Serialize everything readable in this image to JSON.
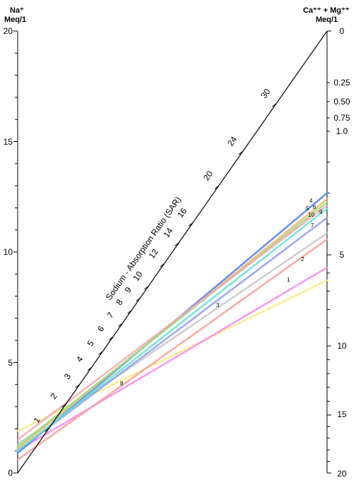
{
  "chart_data": {
    "type": "line",
    "left_axis": {
      "label_line1": "Na⁺",
      "label_line2": "Meq/1",
      "range": [
        0,
        20
      ],
      "ticks": [
        "0",
        "5",
        "10",
        "15",
        "20"
      ]
    },
    "right_axis": {
      "label_line1": "Ca⁺⁺ + Mg⁺⁺",
      "label_line2": "Meq/1",
      "ticks": [
        "0",
        "0.25",
        "0.50",
        "0.75",
        "1.0",
        "5",
        "10",
        "15",
        "20"
      ],
      "tick_values": [
        0,
        0.25,
        0.5,
        0.75,
        1.0,
        5,
        10,
        15,
        20
      ]
    },
    "diagonal_axis": {
      "label": "Sodium - Absorption Ratio (SAR)",
      "ticks": [
        "1",
        "2",
        "3",
        "4",
        "5",
        "6",
        "7",
        "8",
        "9",
        "10",
        "12",
        "14",
        "16",
        "20",
        "24",
        "30"
      ],
      "tick_values": [
        1,
        2,
        3,
        4,
        5,
        6,
        7,
        8,
        9,
        10,
        12,
        14,
        16,
        20,
        24,
        30
      ]
    },
    "series": [
      {
        "label": "1",
        "na": 1.9,
        "camg": 6.4,
        "color": "#f6ed7e"
      },
      {
        "label": "2",
        "na": 1.0,
        "camg": 5.7,
        "color": "#f986f0"
      },
      {
        "label": "3",
        "na": 1.3,
        "camg": 4.3,
        "color": "#c6c6c6"
      },
      {
        "label": "4",
        "na": 0.9,
        "camg": 3.0,
        "color": "#4d7cf7"
      },
      {
        "label": "5",
        "na": 1.1,
        "camg": 3.2,
        "color": "#f5b46a"
      },
      {
        "label": "6",
        "na": 1.2,
        "camg": 3.3,
        "color": "#8fe07a"
      },
      {
        "label": "7",
        "na": 1.0,
        "camg": 3.8,
        "color": "#8f9bf5"
      },
      {
        "label": "8",
        "na": 0.6,
        "camg": 4.5,
        "color": "#fb9a96"
      },
      {
        "label": "9",
        "na": 1.0,
        "camg": 3.5,
        "color": "#5fe2d4"
      },
      {
        "label": "10",
        "na": 1.5,
        "camg": 3.4,
        "color": "#f8a4b0"
      }
    ]
  }
}
